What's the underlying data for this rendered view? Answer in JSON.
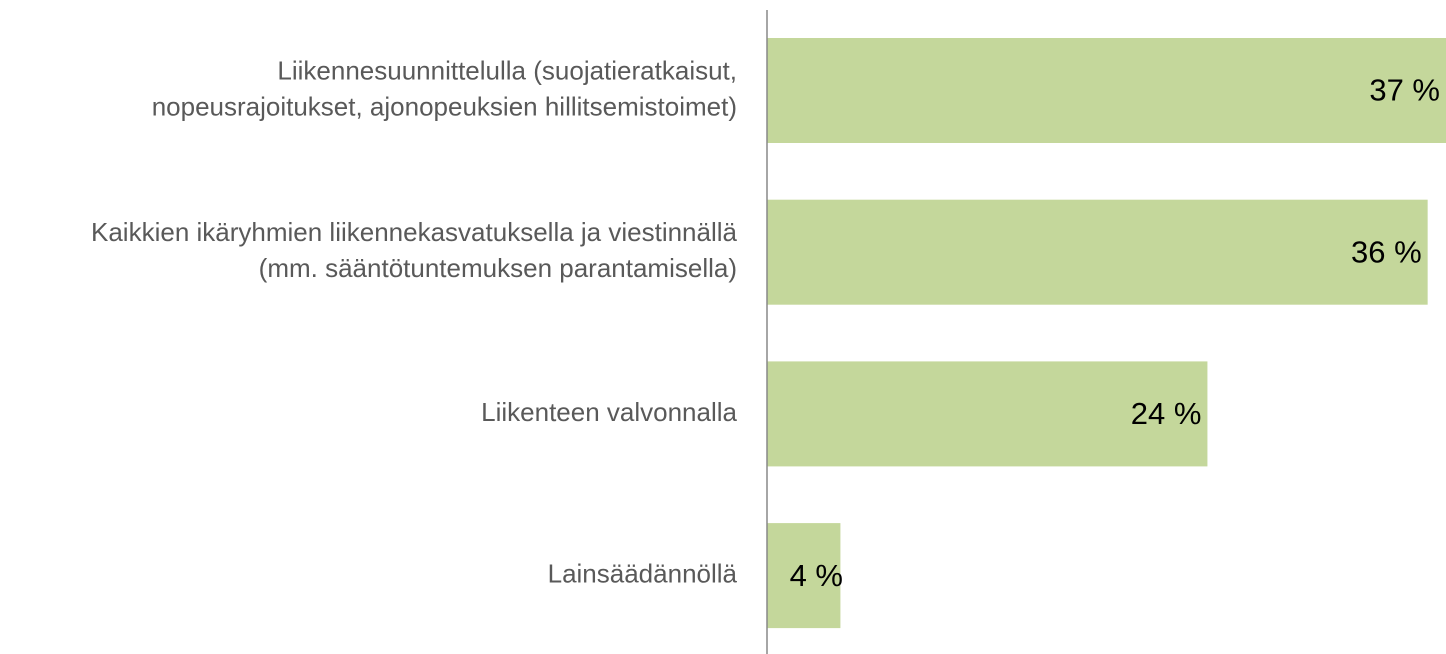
{
  "chart_data": {
    "type": "bar",
    "orientation": "horizontal",
    "categories": [
      [
        "Liikennesuunnittelulla (suojatieratkaisut,",
        "nopeusrajoitukset, ajonopeuksien hillitsemistoimet)"
      ],
      [
        "Kaikkien ikäryhmien liikennekasvatuksella ja viestinnällä",
        "(mm. sääntötuntemuksen parantamisella)"
      ],
      [
        "Liikenteen valvonnalla"
      ],
      [
        "Lainsäädännöllä"
      ]
    ],
    "values": [
      37,
      36,
      24,
      4
    ],
    "value_labels": [
      "37 %",
      "36 %",
      "24 %",
      "4 %"
    ],
    "color": "#c4d79b",
    "xlim": [
      0,
      37
    ]
  }
}
